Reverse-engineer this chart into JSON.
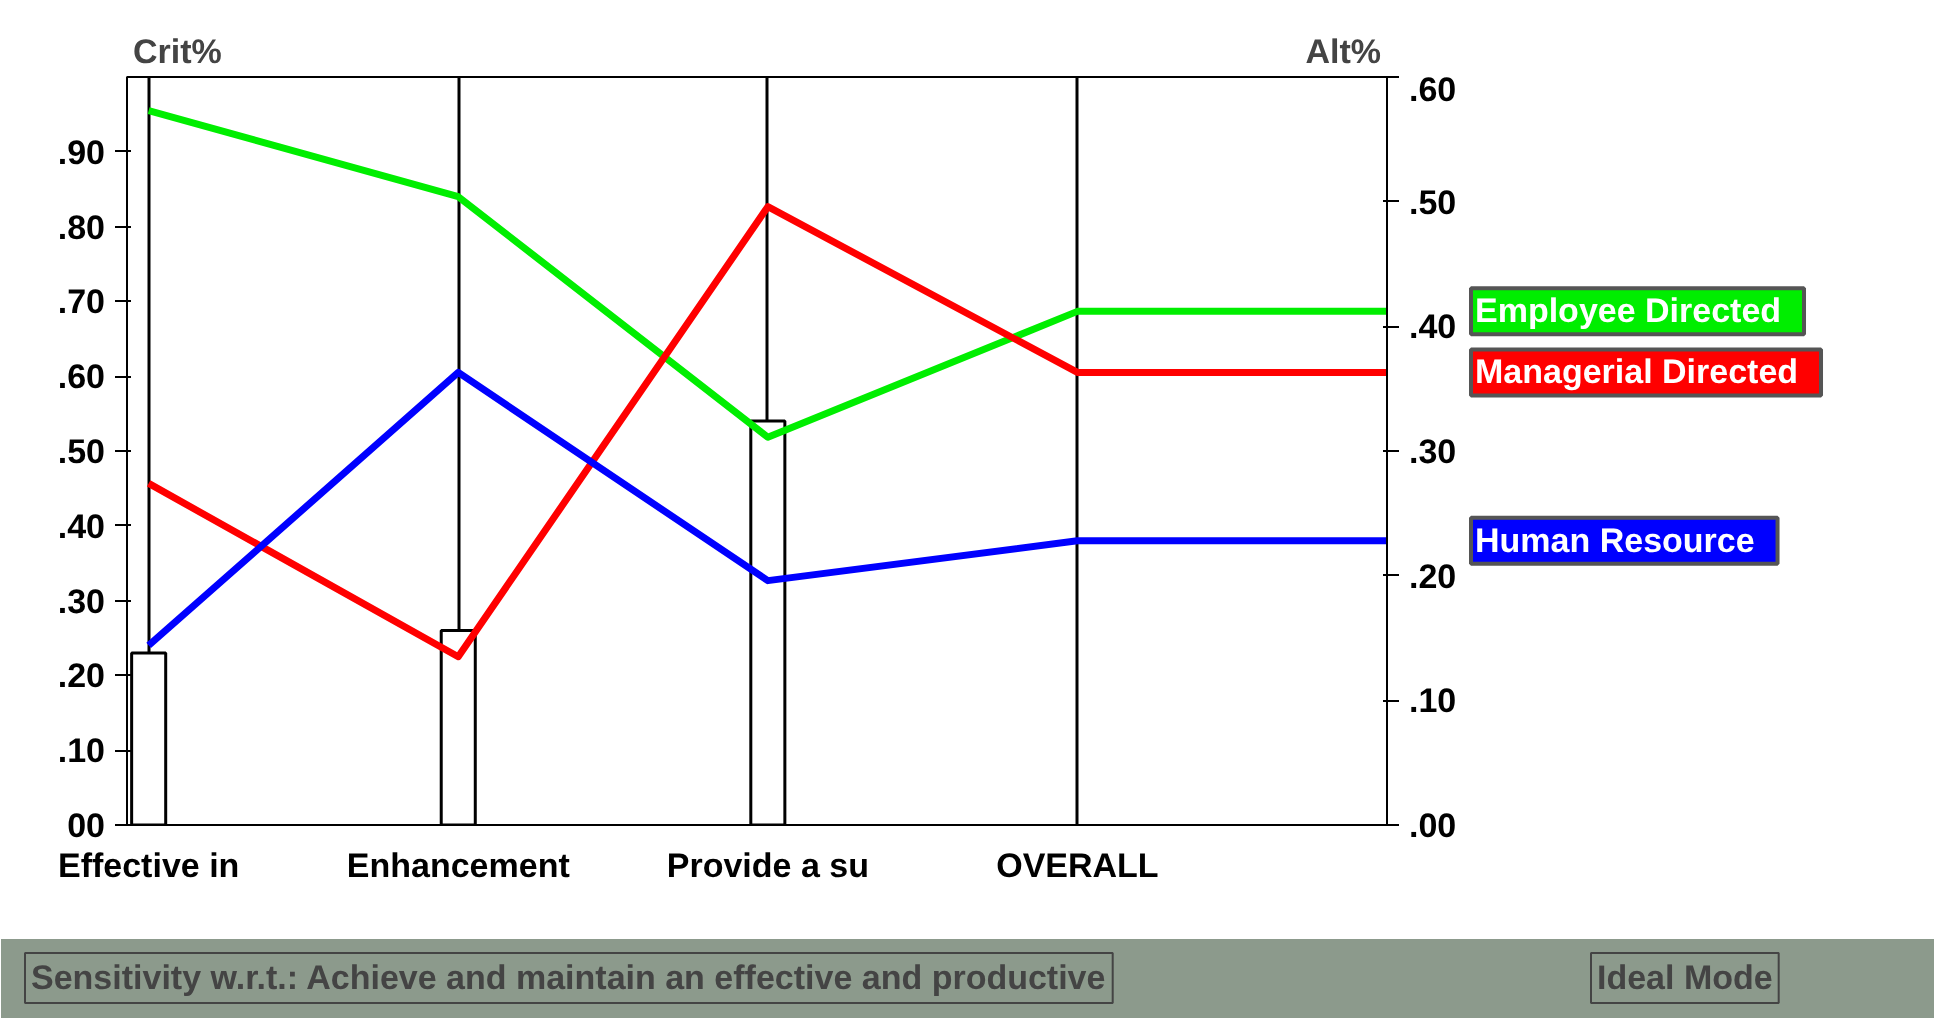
{
  "chart_data": {
    "type": "line",
    "categories": [
      "Effective in",
      "Enhancement",
      "Provide a su",
      "OVERALL",
      null
    ],
    "series": [
      {
        "type": "bar",
        "color": "#ffffff",
        "values": [
          0.23,
          0.26,
          0.54,
          null,
          null
        ]
      },
      {
        "name": "Employee Directed",
        "color": "#00ee00",
        "axis": "y2",
        "values": [
          0.573,
          0.504,
          0.311,
          0.412,
          0.412
        ]
      },
      {
        "name": "Managerial Directed",
        "color": "#ff0000",
        "axis": "y2",
        "values": [
          0.274,
          0.135,
          0.496,
          0.363,
          0.363
        ]
      },
      {
        "name": "Human Resource",
        "color": "#0000ff",
        "axis": "y2",
        "values": [
          0.144,
          0.363,
          0.196,
          0.228,
          0.228
        ]
      }
    ],
    "ylabel": "Crit%",
    "y2label": "Alt%",
    "ylim": [
      0,
      1.0
    ],
    "yticks": [
      {
        "value": 0,
        "label": "00"
      },
      {
        "value": 0.1,
        "label": ".10"
      },
      {
        "value": 0.2,
        "label": ".20"
      },
      {
        "value": 0.3,
        "label": ".30"
      },
      {
        "value": 0.4,
        "label": ".40"
      },
      {
        "value": 0.5,
        "label": ".50"
      },
      {
        "value": 0.6,
        "label": ".60"
      },
      {
        "value": 0.7,
        "label": ".70"
      },
      {
        "value": 0.8,
        "label": ".80"
      },
      {
        "value": 0.9,
        "label": ".90"
      }
    ],
    "y2lim": [
      0,
      0.6
    ],
    "y2ticks": [
      {
        "value": 0,
        "label": ".00"
      },
      {
        "value": 0.1,
        "label": ".10"
      },
      {
        "value": 0.2,
        "label": ".20"
      },
      {
        "value": 0.3,
        "label": ".30"
      },
      {
        "value": 0.4,
        "label": ".40"
      },
      {
        "value": 0.5,
        "label": ".50"
      },
      {
        "value": 0.6,
        "label": ".60"
      }
    ],
    "grid": "x",
    "annotations": [
      "Sensitivity w.r.t.: Achieve and maintain an effective and productive",
      "Ideal Mode"
    ]
  }
}
